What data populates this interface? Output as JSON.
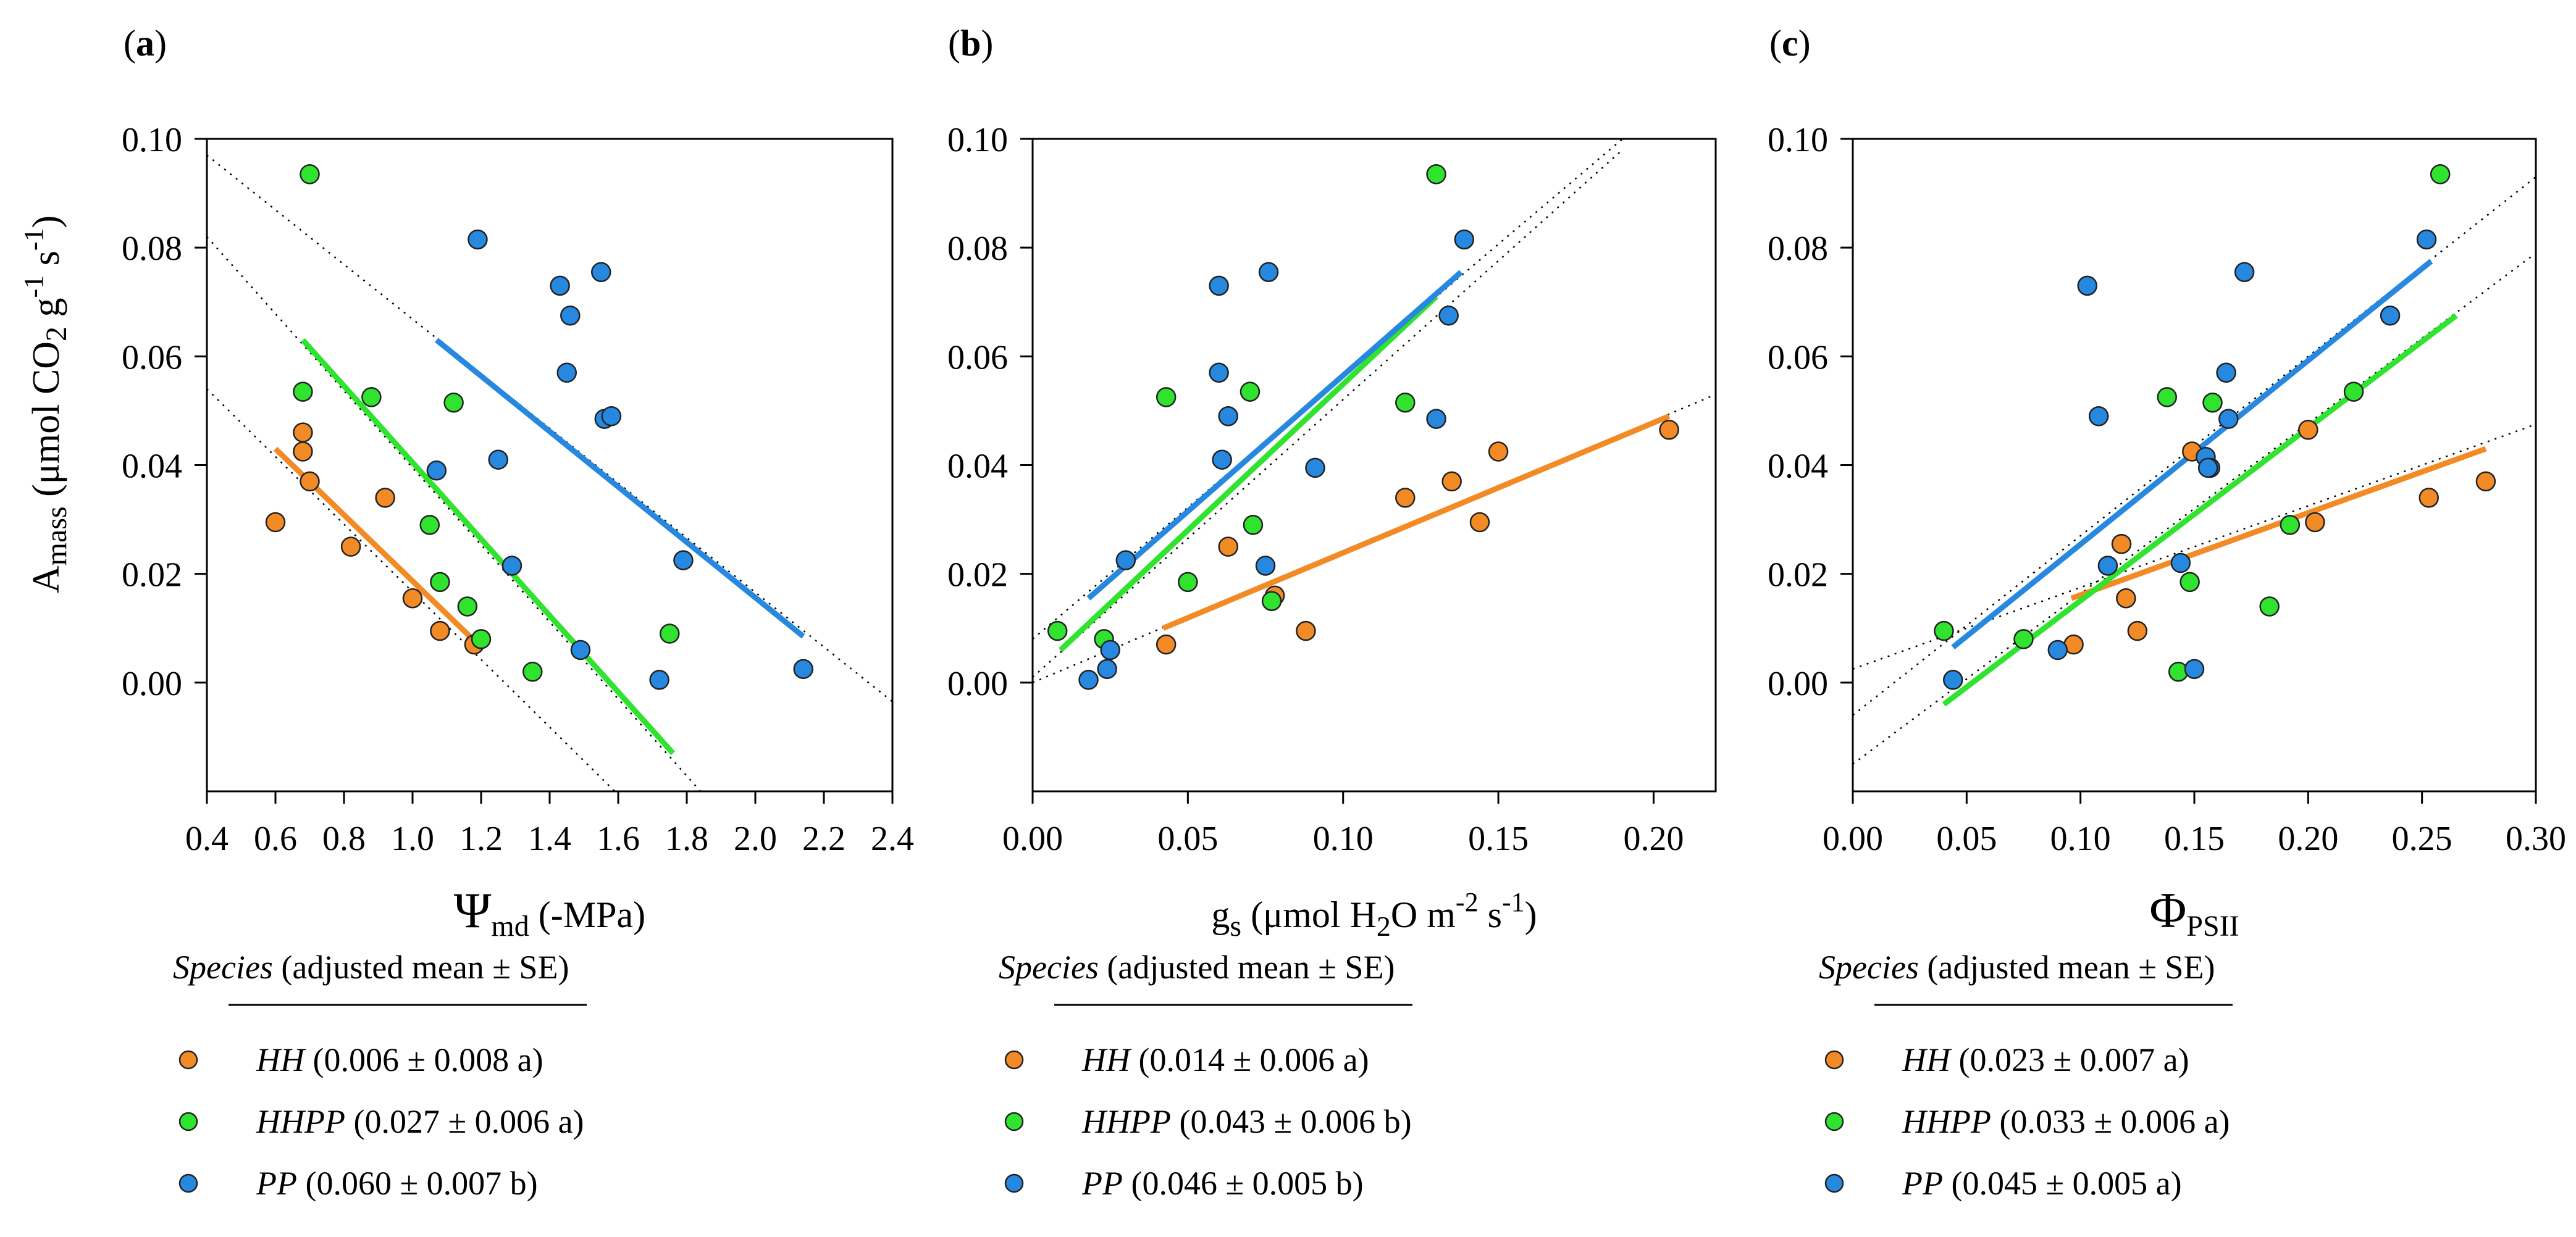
{
  "colors": {
    "HH": "#F28A25",
    "HHPP": "#2FE32F",
    "PP": "#2788E0"
  },
  "legend_header": {
    "species": "Species",
    "rest": "(adjusted mean ± SE)"
  },
  "chart_data": [
    {
      "type": "scatter",
      "panel": "(a)",
      "xlabel": {
        "symbol": "Ψ",
        "sub": "md",
        "tail": " (-MPa)"
      },
      "ylabel": "Amass (μmol CO2 g-1 s-1)",
      "xlim": [
        0.4,
        2.4
      ],
      "ylim": [
        -0.02,
        0.1
      ],
      "xticks": [
        "0.4",
        "0.6",
        "0.8",
        "1.0",
        "1.2",
        "1.4",
        "1.6",
        "1.8",
        "2.0",
        "2.2",
        "2.4"
      ],
      "yticks": [
        "0.00",
        "0.02",
        "0.04",
        "0.06",
        "0.08",
        "0.10"
      ],
      "series": [
        {
          "name": "HH",
          "x": [
            0.6,
            0.68,
            0.68,
            0.7,
            0.82,
            0.92,
            1.0,
            1.08,
            1.18
          ],
          "y": [
            0.0295,
            0.0425,
            0.046,
            0.037,
            0.025,
            0.034,
            0.0155,
            0.0095,
            0.007
          ],
          "fit": [
            [
              0.6,
              0.043
            ],
            [
              1.2,
              0.0065
            ]
          ],
          "dotted": [
            [
              0.4,
              0.054
            ],
            [
              1.59,
              -0.02
            ]
          ]
        },
        {
          "name": "HHPP",
          "x": [
            0.7,
            0.68,
            0.88,
            1.05,
            1.08,
            1.12,
            1.16,
            1.2,
            1.35,
            1.75
          ],
          "y": [
            0.0935,
            0.0535,
            0.0525,
            0.029,
            0.0185,
            0.0515,
            0.014,
            0.008,
            0.002,
            0.009
          ],
          "fit": [
            [
              0.68,
              0.063
            ],
            [
              1.76,
              -0.013
            ]
          ],
          "dotted": [
            [
              0.4,
              0.082
            ],
            [
              1.84,
              -0.02
            ]
          ]
        },
        {
          "name": "PP",
          "x": [
            1.19,
            1.43,
            1.46,
            1.55,
            1.45,
            1.25,
            1.07,
            1.56,
            1.58,
            1.29,
            1.79,
            1.49,
            1.72,
            2.14
          ],
          "y": [
            0.0815,
            0.073,
            0.0675,
            0.0755,
            0.057,
            0.041,
            0.039,
            0.0485,
            0.049,
            0.0215,
            0.0225,
            0.006,
            0.0005,
            0.0025
          ],
          "fit": [
            [
              1.07,
              0.063
            ],
            [
              2.14,
              0.0085
            ]
          ],
          "dotted": [
            [
              0.4,
              0.097
            ],
            [
              2.4,
              -0.0035
            ]
          ]
        }
      ],
      "legend": [
        {
          "name": "HH",
          "value": "(0.006 ± 0.008 a)"
        },
        {
          "name": "HHPP",
          "value": "(0.027 ± 0.006 a)"
        },
        {
          "name": "PP",
          "value": "(0.060 ± 0.007 b)"
        }
      ]
    },
    {
      "type": "scatter",
      "panel": "(b)",
      "xlabel": {
        "symbol": "g",
        "sub": "s",
        "tail": " (μmol H2O m-2 s-1)"
      },
      "xlim": [
        0.0,
        0.22
      ],
      "ylim": [
        -0.02,
        0.1
      ],
      "xticks": [
        "0.00",
        "0.05",
        "0.10",
        "0.15",
        "0.20"
      ],
      "xtickvals": [
        0.0,
        0.05,
        0.1,
        0.15,
        0.2
      ],
      "yticks": [
        "0.00",
        "0.02",
        "0.04",
        "0.06",
        "0.08",
        "0.10"
      ],
      "series": [
        {
          "name": "HH",
          "x": [
            0.043,
            0.063,
            0.078,
            0.088,
            0.12,
            0.135,
            0.144,
            0.15,
            0.205
          ],
          "y": [
            0.007,
            0.025,
            0.016,
            0.0095,
            0.034,
            0.037,
            0.0295,
            0.0425,
            0.0465
          ],
          "fit": [
            [
              0.042,
              0.01
            ],
            [
              0.205,
              0.049
            ]
          ],
          "dotted": [
            [
              0.0,
              0.0
            ],
            [
              0.22,
              0.053
            ]
          ]
        },
        {
          "name": "HHPP",
          "x": [
            0.008,
            0.023,
            0.043,
            0.05,
            0.07,
            0.071,
            0.077,
            0.12,
            0.13
          ],
          "y": [
            0.0095,
            0.008,
            0.0525,
            0.0185,
            0.0535,
            0.029,
            0.015,
            0.0515,
            0.0935
          ],
          "fit": [
            [
              0.009,
              0.006
            ],
            [
              0.13,
              0.071
            ]
          ],
          "dotted": [
            [
              0.0,
              0.001
            ],
            [
              0.19,
              0.098
            ]
          ]
        },
        {
          "name": "PP",
          "x": [
            0.018,
            0.024,
            0.025,
            0.03,
            0.06,
            0.06,
            0.061,
            0.063,
            0.075,
            0.076,
            0.091,
            0.13,
            0.134,
            0.139
          ],
          "y": [
            0.0005,
            0.0025,
            0.006,
            0.0225,
            0.073,
            0.057,
            0.041,
            0.049,
            0.0215,
            0.0755,
            0.0395,
            0.0485,
            0.0675,
            0.0815
          ],
          "fit": [
            [
              0.018,
              0.0155
            ],
            [
              0.138,
              0.0755
            ]
          ],
          "dotted": [
            [
              0.0,
              0.008
            ],
            [
              0.19,
              0.1
            ]
          ]
        }
      ],
      "legend": [
        {
          "name": "HH",
          "value": "(0.014 ± 0.006 a)"
        },
        {
          "name": "HHPP",
          "value": "(0.043 ± 0.006 b)"
        },
        {
          "name": "PP",
          "value": "(0.046 ± 0.005 b)"
        }
      ]
    },
    {
      "type": "scatter",
      "panel": "(c)",
      "xlabel": {
        "symbol": "Φ",
        "sub": "PSII",
        "tail": ""
      },
      "xlim": [
        0.0,
        0.3
      ],
      "ylim": [
        -0.02,
        0.1
      ],
      "xticks": [
        "0.00",
        "0.05",
        "0.10",
        "0.15",
        "0.20",
        "0.25",
        "0.30"
      ],
      "yticks": [
        "0.00",
        "0.02",
        "0.04",
        "0.06",
        "0.08",
        "0.10"
      ],
      "series": [
        {
          "name": "HH",
          "x": [
            0.097,
            0.118,
            0.12,
            0.125,
            0.149,
            0.2,
            0.203,
            0.253,
            0.278
          ],
          "y": [
            0.007,
            0.0255,
            0.0155,
            0.0095,
            0.0425,
            0.0465,
            0.0295,
            0.034,
            0.037
          ],
          "fit": [
            [
              0.096,
              0.0155
            ],
            [
              0.278,
              0.043
            ]
          ],
          "dotted": [
            [
              0.0,
              0.0025
            ],
            [
              0.3,
              0.0475
            ]
          ]
        },
        {
          "name": "HHPP",
          "x": [
            0.04,
            0.075,
            0.138,
            0.143,
            0.148,
            0.158,
            0.183,
            0.192,
            0.22,
            0.258
          ],
          "y": [
            0.0095,
            0.008,
            0.0525,
            0.002,
            0.0185,
            0.0515,
            0.014,
            0.029,
            0.0535,
            0.0935
          ],
          "fit": [
            [
              0.04,
              -0.004
            ],
            [
              0.265,
              0.0675
            ]
          ],
          "dotted": [
            [
              0.0,
              -0.015
            ],
            [
              0.3,
              0.079
            ]
          ]
        },
        {
          "name": "PP",
          "x": [
            0.044,
            0.09,
            0.103,
            0.108,
            0.112,
            0.144,
            0.15,
            0.155,
            0.157,
            0.156,
            0.164,
            0.165,
            0.172,
            0.236,
            0.252
          ],
          "y": [
            0.0005,
            0.006,
            0.073,
            0.049,
            0.0215,
            0.022,
            0.0025,
            0.0415,
            0.0395,
            0.0395,
            0.057,
            0.0485,
            0.0755,
            0.0675,
            0.0815
          ],
          "fit": [
            [
              0.044,
              0.0065
            ],
            [
              0.254,
              0.0775
            ]
          ],
          "dotted": [
            [
              0.0,
              -0.006
            ],
            [
              0.3,
              0.093
            ]
          ]
        }
      ],
      "legend": [
        {
          "name": "HH",
          "value": "(0.023 ± 0.007 a)"
        },
        {
          "name": "HHPP",
          "value": "(0.033 ± 0.006 a)"
        },
        {
          "name": "PP",
          "value": "(0.045 ± 0.005 a)"
        }
      ]
    }
  ]
}
